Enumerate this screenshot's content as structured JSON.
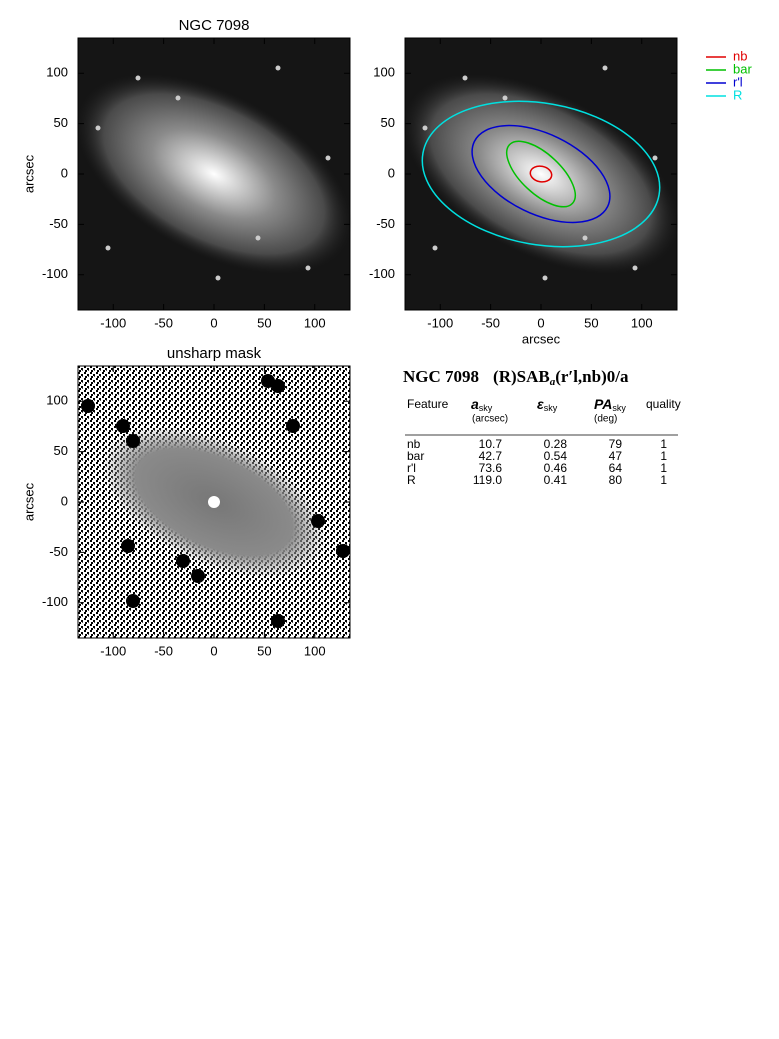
{
  "axes": {
    "lim": [
      -135,
      135
    ],
    "ticks": [
      -100,
      -50,
      0,
      50,
      100
    ]
  },
  "panels": [
    {
      "title": "NGC 7098",
      "ylabel": "arcsec"
    },
    {
      "xlabel": "arcsec"
    },
    {
      "title": "unsharp mask",
      "ylabel": "arcsec"
    }
  ],
  "legend": [
    {
      "name": "nb",
      "color": "#e00000"
    },
    {
      "name": "bar",
      "color": "#00c000"
    },
    {
      "name": "r'l",
      "color": "#0000d0"
    },
    {
      "name": "R",
      "color": "#00e0e0"
    }
  ],
  "table": {
    "title": {
      "name": "NGC 7098",
      "class_main": "(R)SAB",
      "class_sub": "a",
      "class_rest": "(r′l,nb)0/a"
    },
    "headers": [
      {
        "main": "Feature"
      },
      {
        "main": "a",
        "sub": "sky",
        "unit": "(arcsec)"
      },
      {
        "main": "ε",
        "sub": "sky"
      },
      {
        "main": "PA",
        "sub": "sky",
        "unit": "(deg)"
      },
      {
        "main": "quality"
      }
    ],
    "rows": [
      [
        "nb",
        "10.7",
        "0.28",
        "79",
        "1"
      ],
      [
        "bar",
        "42.7",
        "0.54",
        "47",
        "1"
      ],
      [
        "r'l",
        "73.6",
        "0.46",
        "64",
        "1"
      ],
      [
        "R",
        "119.0",
        "0.41",
        "80",
        "1"
      ]
    ]
  }
}
